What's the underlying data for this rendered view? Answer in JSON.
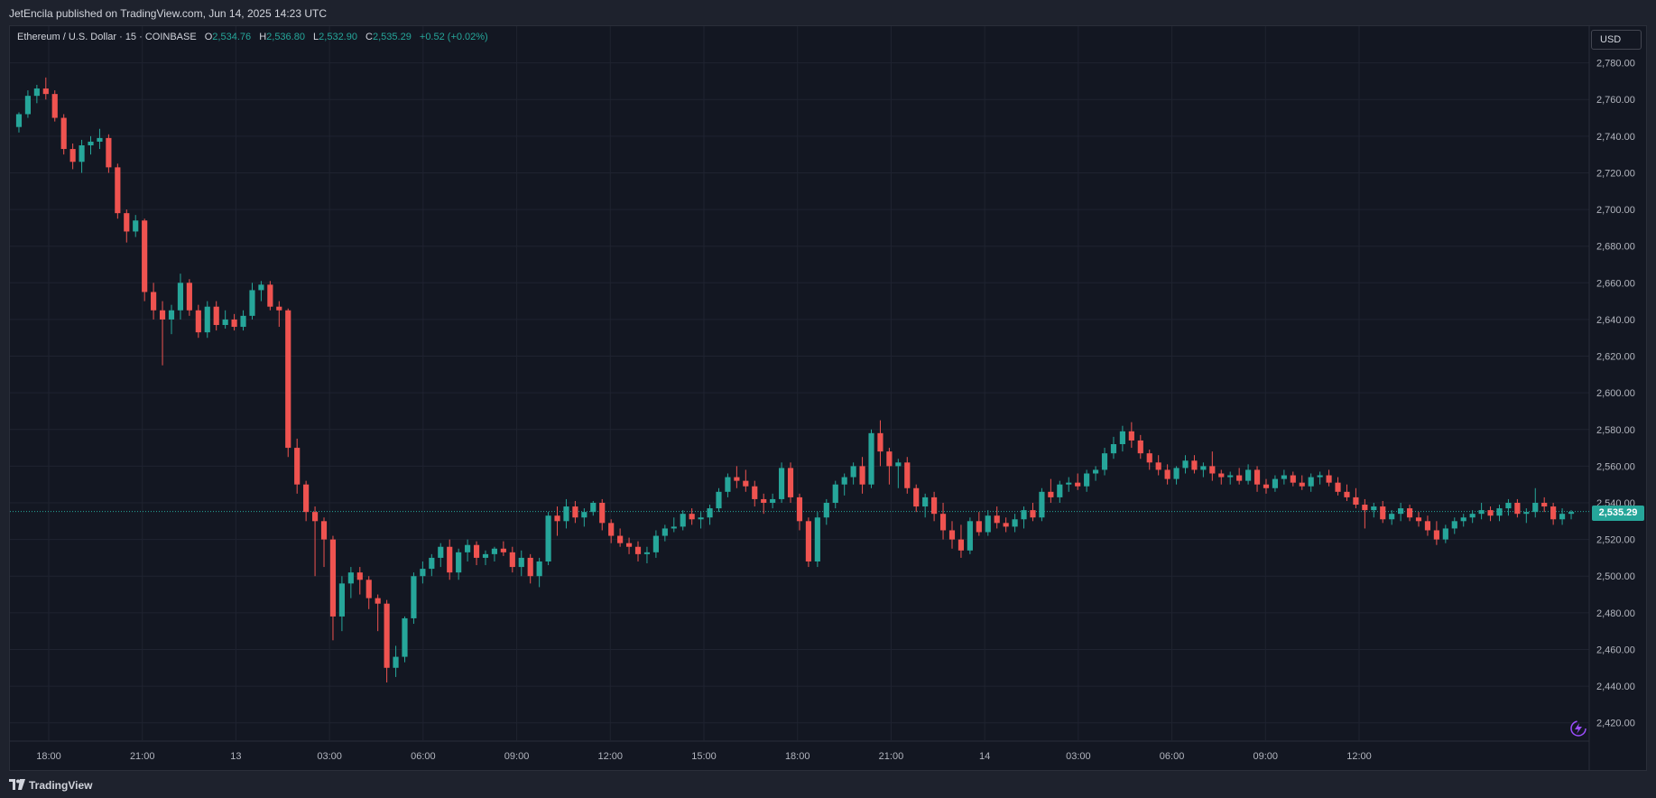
{
  "header": {
    "published_text": "JetEncila published on TradingView.com, Jun 14, 2025 14:23 UTC"
  },
  "legend": {
    "symbol": "Ethereum / U.S. Dollar · 15 · COINBASE",
    "open_label": "O",
    "open": "2,534.76",
    "high_label": "H",
    "high": "2,536.80",
    "low_label": "L",
    "low": "2,532.90",
    "close_label": "C",
    "close": "2,535.29",
    "change": "+0.52 (+0.02%)"
  },
  "currency": "USD",
  "last_price_label": "2,535.29",
  "footer": {
    "brand": "TradingView"
  },
  "colors": {
    "up": "#26a69a",
    "down": "#ef5350",
    "background": "#131722",
    "grid": "#1f2330"
  },
  "chart_data": {
    "type": "candlestick",
    "title": "Ethereum / U.S. Dollar · 15 · COINBASE",
    "interval": "15",
    "ylim": [
      2410,
      2800
    ],
    "y_ticks": [
      2420,
      2440,
      2460,
      2480,
      2500,
      2520,
      2540,
      2560,
      2580,
      2600,
      2620,
      2640,
      2660,
      2680,
      2700,
      2720,
      2740,
      2760,
      2780
    ],
    "y_tick_labels": [
      "2,420.00",
      "2,440.00",
      "2,460.00",
      "2,480.00",
      "2,500.00",
      "2,520.00",
      "2,540.00",
      "2,560.00",
      "2,580.00",
      "2,600.00",
      "2,620.00",
      "2,640.00",
      "2,660.00",
      "2,680.00",
      "2,700.00",
      "2,720.00",
      "2,740.00",
      "2,760.00",
      "2,780.00"
    ],
    "x_tick_labels": [
      "18:00",
      "21:00",
      "13",
      "03:00",
      "06:00",
      "09:00",
      "12:00",
      "15:00",
      "18:00",
      "21:00",
      "14",
      "03:00",
      "06:00",
      "09:00",
      "12:00"
    ],
    "grid": true,
    "last_price": 2535.29,
    "candles": [
      [
        2745,
        2753,
        2742,
        2752
      ],
      [
        2752,
        2765,
        2750,
        2762
      ],
      [
        2762,
        2768,
        2758,
        2766
      ],
      [
        2766,
        2772,
        2760,
        2763
      ],
      [
        2763,
        2765,
        2748,
        2750
      ],
      [
        2750,
        2752,
        2730,
        2733
      ],
      [
        2733,
        2736,
        2722,
        2726
      ],
      [
        2726,
        2738,
        2720,
        2735
      ],
      [
        2735,
        2740,
        2730,
        2737
      ],
      [
        2737,
        2744,
        2733,
        2739
      ],
      [
        2739,
        2741,
        2720,
        2723
      ],
      [
        2723,
        2725,
        2695,
        2698
      ],
      [
        2698,
        2700,
        2682,
        2688
      ],
      [
        2688,
        2697,
        2685,
        2694
      ],
      [
        2694,
        2695,
        2650,
        2655
      ],
      [
        2655,
        2660,
        2640,
        2645
      ],
      [
        2645,
        2650,
        2615,
        2640
      ],
      [
        2640,
        2648,
        2632,
        2645
      ],
      [
        2645,
        2665,
        2640,
        2660
      ],
      [
        2660,
        2662,
        2642,
        2645
      ],
      [
        2645,
        2648,
        2630,
        2633
      ],
      [
        2633,
        2650,
        2630,
        2647
      ],
      [
        2647,
        2650,
        2634,
        2637
      ],
      [
        2637,
        2645,
        2635,
        2640
      ],
      [
        2640,
        2643,
        2634,
        2636
      ],
      [
        2636,
        2645,
        2634,
        2642
      ],
      [
        2642,
        2660,
        2640,
        2656
      ],
      [
        2656,
        2661,
        2650,
        2659
      ],
      [
        2659,
        2661,
        2645,
        2647
      ],
      [
        2647,
        2650,
        2636,
        2645
      ],
      [
        2645,
        2646,
        2565,
        2570
      ],
      [
        2570,
        2575,
        2545,
        2550
      ],
      [
        2550,
        2552,
        2530,
        2535
      ],
      [
        2535,
        2538,
        2500,
        2530
      ],
      [
        2530,
        2532,
        2505,
        2520
      ],
      [
        2520,
        2522,
        2465,
        2478
      ],
      [
        2478,
        2500,
        2470,
        2496
      ],
      [
        2496,
        2505,
        2488,
        2502
      ],
      [
        2502,
        2505,
        2490,
        2498
      ],
      [
        2498,
        2500,
        2482,
        2488
      ],
      [
        2488,
        2490,
        2470,
        2485
      ],
      [
        2485,
        2487,
        2442,
        2450
      ],
      [
        2450,
        2462,
        2445,
        2456
      ],
      [
        2456,
        2478,
        2453,
        2477
      ],
      [
        2477,
        2502,
        2474,
        2500
      ],
      [
        2500,
        2508,
        2496,
        2504
      ],
      [
        2504,
        2512,
        2500,
        2510
      ],
      [
        2510,
        2518,
        2505,
        2516
      ],
      [
        2516,
        2520,
        2498,
        2502
      ],
      [
        2502,
        2515,
        2498,
        2513
      ],
      [
        2513,
        2520,
        2508,
        2517
      ],
      [
        2517,
        2519,
        2506,
        2510
      ],
      [
        2510,
        2514,
        2506,
        2512
      ],
      [
        2512,
        2516,
        2508,
        2515
      ],
      [
        2515,
        2519,
        2511,
        2513
      ],
      [
        2513,
        2516,
        2502,
        2505
      ],
      [
        2505,
        2514,
        2500,
        2510
      ],
      [
        2510,
        2512,
        2496,
        2500
      ],
      [
        2500,
        2510,
        2494,
        2508
      ],
      [
        2508,
        2535,
        2506,
        2533
      ],
      [
        2533,
        2538,
        2522,
        2530
      ],
      [
        2530,
        2542,
        2526,
        2538
      ],
      [
        2538,
        2541,
        2529,
        2532
      ],
      [
        2532,
        2537,
        2527,
        2535
      ],
      [
        2535,
        2541,
        2533,
        2540
      ],
      [
        2540,
        2542,
        2525,
        2529
      ],
      [
        2529,
        2531,
        2518,
        2522
      ],
      [
        2522,
        2526,
        2516,
        2518
      ],
      [
        2518,
        2521,
        2512,
        2516
      ],
      [
        2516,
        2519,
        2508,
        2512
      ],
      [
        2512,
        2516,
        2507,
        2513
      ],
      [
        2513,
        2525,
        2510,
        2522
      ],
      [
        2522,
        2528,
        2519,
        2526
      ],
      [
        2526,
        2532,
        2524,
        2527
      ],
      [
        2527,
        2536,
        2525,
        2534
      ],
      [
        2534,
        2537,
        2528,
        2531
      ],
      [
        2531,
        2535,
        2526,
        2532
      ],
      [
        2532,
        2539,
        2528,
        2537
      ],
      [
        2537,
        2548,
        2535,
        2546
      ],
      [
        2546,
        2556,
        2543,
        2554
      ],
      [
        2554,
        2560,
        2548,
        2552
      ],
      [
        2552,
        2558,
        2546,
        2549
      ],
      [
        2549,
        2552,
        2538,
        2542
      ],
      [
        2542,
        2545,
        2534,
        2540
      ],
      [
        2540,
        2545,
        2537,
        2542
      ],
      [
        2542,
        2562,
        2540,
        2559
      ],
      [
        2559,
        2562,
        2540,
        2543
      ],
      [
        2543,
        2545,
        2525,
        2530
      ],
      [
        2530,
        2532,
        2505,
        2508
      ],
      [
        2508,
        2535,
        2505,
        2532
      ],
      [
        2532,
        2542,
        2528,
        2540
      ],
      [
        2540,
        2552,
        2537,
        2550
      ],
      [
        2550,
        2556,
        2544,
        2554
      ],
      [
        2554,
        2562,
        2550,
        2560
      ],
      [
        2560,
        2565,
        2545,
        2550
      ],
      [
        2550,
        2580,
        2548,
        2578
      ],
      [
        2578,
        2585,
        2560,
        2568
      ],
      [
        2568,
        2570,
        2550,
        2560
      ],
      [
        2560,
        2564,
        2548,
        2562
      ],
      [
        2562,
        2565,
        2545,
        2548
      ],
      [
        2548,
        2550,
        2535,
        2538
      ],
      [
        2538,
        2545,
        2532,
        2543
      ],
      [
        2543,
        2546,
        2530,
        2534
      ],
      [
        2534,
        2540,
        2520,
        2525
      ],
      [
        2525,
        2530,
        2515,
        2520
      ],
      [
        2520,
        2528,
        2510,
        2514
      ],
      [
        2514,
        2532,
        2512,
        2530
      ],
      [
        2530,
        2535,
        2522,
        2524
      ],
      [
        2524,
        2536,
        2522,
        2533
      ],
      [
        2533,
        2538,
        2526,
        2529
      ],
      [
        2529,
        2532,
        2524,
        2527
      ],
      [
        2527,
        2534,
        2524,
        2531
      ],
      [
        2531,
        2538,
        2526,
        2536
      ],
      [
        2536,
        2540,
        2530,
        2532
      ],
      [
        2532,
        2548,
        2530,
        2546
      ],
      [
        2546,
        2553,
        2540,
        2543
      ],
      [
        2543,
        2552,
        2540,
        2550
      ],
      [
        2550,
        2554,
        2546,
        2551
      ],
      [
        2551,
        2556,
        2547,
        2549
      ],
      [
        2549,
        2558,
        2546,
        2556
      ],
      [
        2556,
        2560,
        2552,
        2558
      ],
      [
        2558,
        2570,
        2555,
        2567
      ],
      [
        2567,
        2576,
        2564,
        2572
      ],
      [
        2572,
        2582,
        2568,
        2579
      ],
      [
        2579,
        2584,
        2570,
        2574
      ],
      [
        2574,
        2577,
        2564,
        2567
      ],
      [
        2567,
        2569,
        2558,
        2562
      ],
      [
        2562,
        2566,
        2555,
        2558
      ],
      [
        2558,
        2561,
        2550,
        2553
      ],
      [
        2553,
        2560,
        2550,
        2559
      ],
      [
        2559,
        2566,
        2556,
        2563
      ],
      [
        2563,
        2566,
        2556,
        2558
      ],
      [
        2558,
        2562,
        2554,
        2560
      ],
      [
        2560,
        2568,
        2552,
        2556
      ],
      [
        2556,
        2558,
        2550,
        2554
      ],
      [
        2554,
        2557,
        2550,
        2555
      ],
      [
        2555,
        2559,
        2550,
        2552
      ],
      [
        2552,
        2561,
        2550,
        2558
      ],
      [
        2558,
        2560,
        2546,
        2550
      ],
      [
        2550,
        2553,
        2545,
        2548
      ],
      [
        2548,
        2555,
        2546,
        2553
      ],
      [
        2553,
        2558,
        2550,
        2555
      ],
      [
        2555,
        2557,
        2549,
        2551
      ],
      [
        2551,
        2555,
        2547,
        2549
      ],
      [
        2549,
        2556,
        2546,
        2554
      ],
      [
        2554,
        2557,
        2550,
        2555
      ],
      [
        2555,
        2558,
        2549,
        2551
      ],
      [
        2551,
        2554,
        2544,
        2546
      ],
      [
        2546,
        2550,
        2541,
        2543
      ],
      [
        2543,
        2548,
        2537,
        2539
      ],
      [
        2539,
        2542,
        2526,
        2536
      ],
      [
        2536,
        2540,
        2532,
        2538
      ],
      [
        2538,
        2541,
        2529,
        2531
      ],
      [
        2531,
        2536,
        2528,
        2534
      ],
      [
        2534,
        2540,
        2530,
        2537
      ],
      [
        2537,
        2539,
        2530,
        2532
      ],
      [
        2532,
        2535,
        2527,
        2530
      ],
      [
        2530,
        2533,
        2522,
        2525
      ],
      [
        2525,
        2530,
        2517,
        2520
      ],
      [
        2520,
        2528,
        2518,
        2526
      ],
      [
        2526,
        2532,
        2523,
        2530
      ],
      [
        2530,
        2534,
        2527,
        2532
      ],
      [
        2532,
        2536,
        2529,
        2534
      ],
      [
        2534,
        2540,
        2531,
        2536
      ],
      [
        2536,
        2538,
        2530,
        2533
      ],
      [
        2533,
        2539,
        2530,
        2537
      ],
      [
        2537,
        2542,
        2533,
        2540
      ],
      [
        2540,
        2542,
        2532,
        2534
      ],
      [
        2534,
        2537,
        2529,
        2535
      ],
      [
        2535,
        2548,
        2532,
        2540
      ],
      [
        2540,
        2543,
        2535,
        2538
      ],
      [
        2538,
        2540,
        2528,
        2531
      ],
      [
        2531,
        2537,
        2528,
        2534
      ],
      [
        2534,
        2536,
        2531,
        2535
      ]
    ]
  }
}
